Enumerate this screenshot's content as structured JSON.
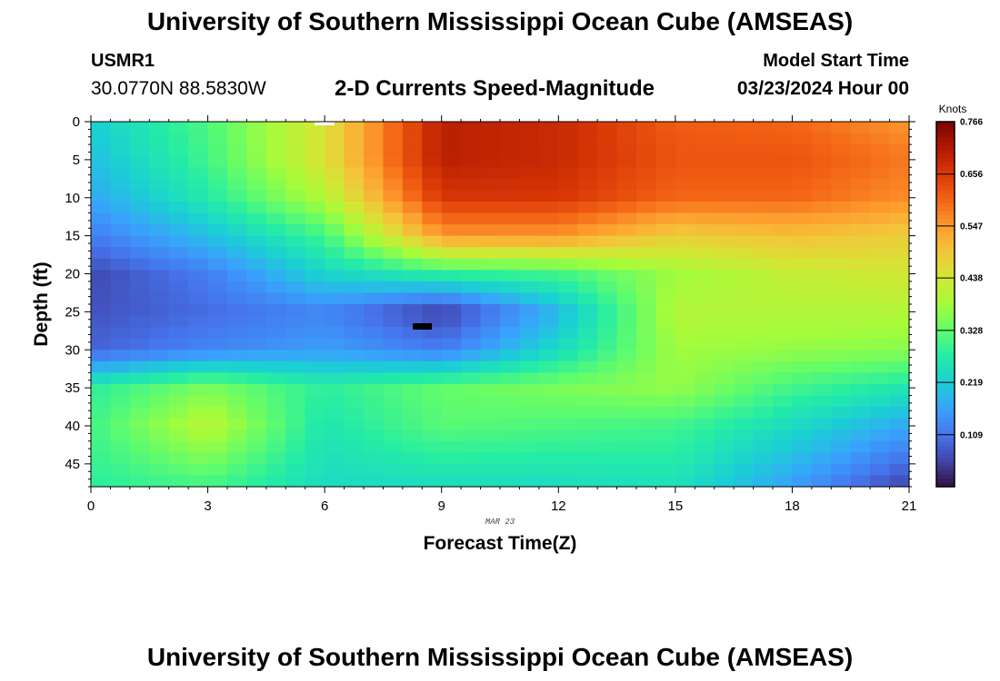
{
  "header": {
    "main_title": "University of Southern Mississippi Ocean Cube (AMSEAS)",
    "station_id": "USMR1",
    "station_coords": "30.0770N  88.5830W",
    "subtitle": "2-D Currents Speed-Magnitude",
    "start_label": "Model Start Time",
    "start_value": "03/23/2024 Hour 00"
  },
  "footer": {
    "title": "University of Southern Mississippi Ocean Cube (AMSEAS)"
  },
  "chart_data": {
    "type": "heatmap",
    "title": "2-D Currents Speed-Magnitude",
    "xlabel": "Forecast Time(Z)",
    "ylabel": "Depth (ft)",
    "x_date_label": "MAR 23",
    "xlim": [
      0,
      21
    ],
    "ylim": [
      0,
      48
    ],
    "x_ticks": [
      0,
      3,
      6,
      9,
      12,
      15,
      18,
      21
    ],
    "x_tick_labels": [
      "0",
      "3",
      "6",
      "9",
      "12",
      "15",
      "18",
      "21"
    ],
    "y_ticks": [
      0,
      5,
      10,
      15,
      20,
      25,
      30,
      35,
      40,
      45
    ],
    "y_tick_labels": [
      "0",
      "5",
      "10",
      "15",
      "20",
      "25",
      "30",
      "35",
      "40",
      "45"
    ],
    "colorbar": {
      "unit": "Knots",
      "range": [
        0.0,
        0.766
      ],
      "tick_values": [
        0.766,
        0.656,
        0.547,
        0.438,
        0.328,
        0.219,
        0.109
      ],
      "tick_labels": [
        "0.766",
        "0.656",
        "0.547",
        "0.438",
        "0.328",
        "0.219",
        "0.109"
      ],
      "colors": [
        "#30123b",
        "#4145ab",
        "#4675ed",
        "#39a2fc",
        "#1bcfd4",
        "#24eca6",
        "#61fc6c",
        "#a4fc3b",
        "#d1e834",
        "#f3c63a",
        "#fe9b2d",
        "#f36315",
        "#d93806",
        "#b11901",
        "#7a0402"
      ]
    },
    "grid_x": [
      0,
      3,
      6,
      9,
      12,
      15,
      18,
      21
    ],
    "grid_depths": [
      0,
      5,
      10,
      15,
      20,
      25,
      30,
      35,
      40,
      48
    ],
    "values_knots": [
      [
        0.22,
        0.31,
        0.45,
        0.7,
        0.68,
        0.61,
        0.6,
        0.55
      ],
      [
        0.2,
        0.3,
        0.45,
        0.7,
        0.68,
        0.62,
        0.62,
        0.58
      ],
      [
        0.17,
        0.27,
        0.4,
        0.66,
        0.66,
        0.6,
        0.6,
        0.56
      ],
      [
        0.12,
        0.2,
        0.3,
        0.55,
        0.55,
        0.48,
        0.5,
        0.48
      ],
      [
        0.06,
        0.12,
        0.23,
        0.28,
        0.3,
        0.38,
        0.42,
        0.44
      ],
      [
        0.07,
        0.1,
        0.13,
        0.05,
        0.19,
        0.4,
        0.4,
        0.4
      ],
      [
        0.09,
        0.13,
        0.16,
        0.12,
        0.24,
        0.38,
        0.37,
        0.36
      ],
      [
        0.28,
        0.35,
        0.28,
        0.33,
        0.35,
        0.37,
        0.3,
        0.26
      ],
      [
        0.3,
        0.41,
        0.26,
        0.32,
        0.31,
        0.3,
        0.24,
        0.17
      ],
      [
        0.28,
        0.3,
        0.24,
        0.24,
        0.24,
        0.25,
        0.16,
        0.05
      ]
    ]
  }
}
